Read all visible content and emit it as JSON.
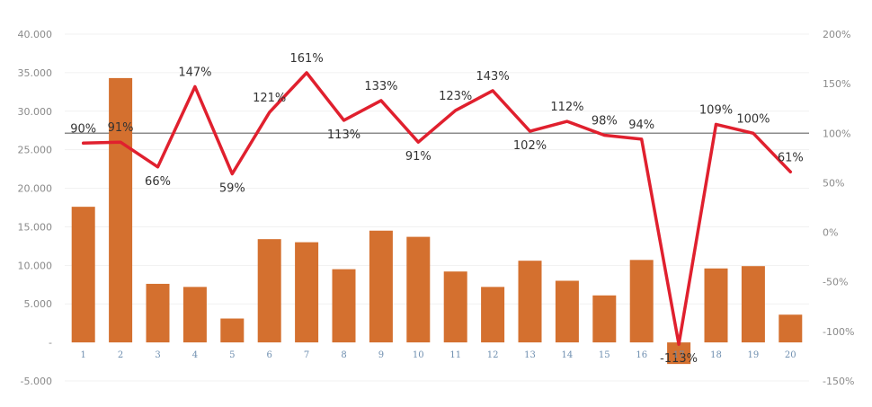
{
  "chart_data": {
    "type": "bar",
    "categories": [
      "1",
      "2",
      "3",
      "4",
      "5",
      "6",
      "7",
      "8",
      "9",
      "10",
      "11",
      "12",
      "13",
      "14",
      "15",
      "16",
      "17",
      "18",
      "19",
      "20"
    ],
    "series": [
      {
        "type": "bar",
        "axis": "left",
        "color": "#d4702f",
        "values": [
          17600,
          34300,
          7600,
          7200,
          3100,
          13400,
          13000,
          9500,
          14500,
          13700,
          9200,
          7200,
          10600,
          8000,
          6100,
          10700,
          -2800,
          9600,
          9900,
          3600
        ]
      },
      {
        "type": "line",
        "axis": "right",
        "color": "#e0202e",
        "values": [
          90,
          91,
          66,
          147,
          59,
          121,
          161,
          113,
          133,
          91,
          123,
          143,
          102,
          112,
          98,
          94,
          -113,
          109,
          100,
          61
        ],
        "labels": [
          "90%",
          "91%",
          "66%",
          "147%",
          "59%",
          "121%",
          "161%",
          "113%",
          "133%",
          "91%",
          "123%",
          "143%",
          "102%",
          "112%",
          "98%",
          "94%",
          "-113%",
          "109%",
          "100%",
          "61%"
        ]
      }
    ],
    "reference_line": {
      "axis": "right",
      "value": 100,
      "color": "#8c8c8c"
    },
    "y_left": {
      "lim": [
        -5000,
        40000
      ],
      "ticks": [
        40000,
        35000,
        30000,
        25000,
        20000,
        15000,
        10000,
        5000,
        0,
        -5000
      ],
      "tick_labels": [
        "40.000",
        "35.000",
        "30.000",
        "25.000",
        "20.000",
        "15.000",
        "10.000",
        "5.000",
        "-",
        "-5.000"
      ]
    },
    "y_right": {
      "lim": [
        -150,
        200
      ],
      "ticks": [
        200,
        150,
        100,
        50,
        0,
        -50,
        -100,
        -150
      ],
      "tick_labels": [
        "200%",
        "150%",
        "100%",
        "50%",
        "0%",
        "-50%",
        "-100%",
        "-150%"
      ]
    },
    "grid": true,
    "title": "",
    "xlabel": "",
    "ylabel": ""
  }
}
